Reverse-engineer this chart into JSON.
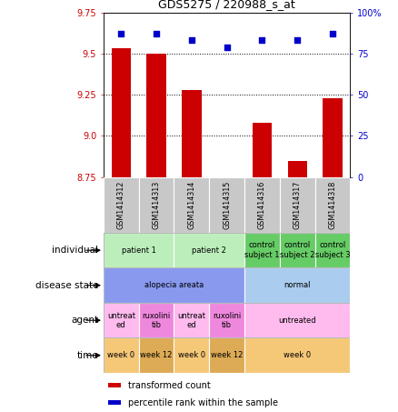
{
  "title": "GDS5275 / 220988_s_at",
  "samples": [
    "GSM1414312",
    "GSM1414313",
    "GSM1414314",
    "GSM1414315",
    "GSM1414316",
    "GSM1414317",
    "GSM1414318"
  ],
  "bar_values": [
    9.53,
    9.5,
    9.28,
    8.74,
    9.08,
    8.85,
    9.23
  ],
  "dot_values": [
    87,
    87,
    83,
    79,
    83,
    83,
    87
  ],
  "ylim_left": [
    8.75,
    9.75
  ],
  "ylim_right": [
    0,
    100
  ],
  "yticks_left": [
    8.75,
    9.0,
    9.25,
    9.5,
    9.75
  ],
  "yticks_right": [
    0,
    25,
    50,
    75,
    100
  ],
  "bar_color": "#cc0000",
  "dot_color": "#0000cc",
  "bar_bottom": 8.75,
  "sample_box_color": "#c8c8c8",
  "individual_row": {
    "label": "individual",
    "cells": [
      {
        "text": "patient 1",
        "span": [
          0,
          2
        ],
        "color": "#bbeebb"
      },
      {
        "text": "patient 2",
        "span": [
          2,
          4
        ],
        "color": "#bbeebb"
      },
      {
        "text": "control\nsubject 1",
        "span": [
          4,
          5
        ],
        "color": "#66cc66"
      },
      {
        "text": "control\nsubject 2",
        "span": [
          5,
          6
        ],
        "color": "#66cc66"
      },
      {
        "text": "control\nsubject 3",
        "span": [
          6,
          7
        ],
        "color": "#66cc66"
      }
    ]
  },
  "disease_row": {
    "label": "disease state",
    "cells": [
      {
        "text": "alopecia areata",
        "span": [
          0,
          4
        ],
        "color": "#8899ee"
      },
      {
        "text": "normal",
        "span": [
          4,
          7
        ],
        "color": "#aaccee"
      }
    ]
  },
  "agent_row": {
    "label": "agent",
    "cells": [
      {
        "text": "untreat\ned",
        "span": [
          0,
          1
        ],
        "color": "#ffbbee"
      },
      {
        "text": "ruxolini\ntib",
        "span": [
          1,
          2
        ],
        "color": "#ee88dd"
      },
      {
        "text": "untreat\ned",
        "span": [
          2,
          3
        ],
        "color": "#ffbbee"
      },
      {
        "text": "ruxolini\ntib",
        "span": [
          3,
          4
        ],
        "color": "#ee88dd"
      },
      {
        "text": "untreated",
        "span": [
          4,
          7
        ],
        "color": "#ffbbee"
      }
    ]
  },
  "time_row": {
    "label": "time",
    "cells": [
      {
        "text": "week 0",
        "span": [
          0,
          1
        ],
        "color": "#f5c878"
      },
      {
        "text": "week 12",
        "span": [
          1,
          2
        ],
        "color": "#ddaa55"
      },
      {
        "text": "week 0",
        "span": [
          2,
          3
        ],
        "color": "#f5c878"
      },
      {
        "text": "week 12",
        "span": [
          3,
          4
        ],
        "color": "#ddaa55"
      },
      {
        "text": "week 0",
        "span": [
          4,
          7
        ],
        "color": "#f5c878"
      }
    ]
  }
}
